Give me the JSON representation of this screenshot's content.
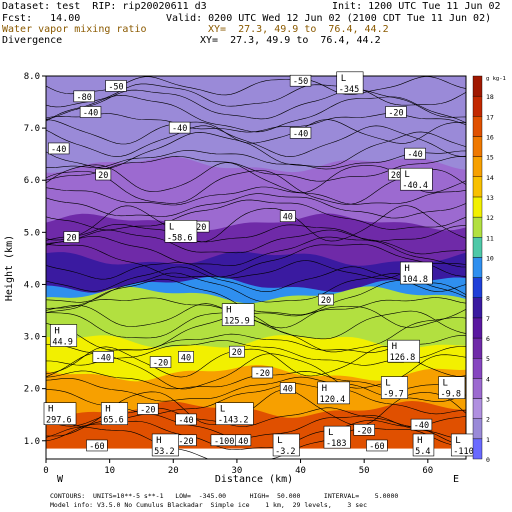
{
  "header": {
    "dataset": "Dataset: test  RIP: rip20020611 d3",
    "init": "Init: 1200 UTC Tue 11 Jun 02",
    "fcst": "Fcst:   14.00",
    "valid": "Valid: 0200 UTC Wed 12 Jun 02 (2100 CDT Tue 11 Jun 02)",
    "field1": "Water vapor mixing ratio",
    "field1_xy": "XY=  27.3, 49.9 to  76.4, 44.2",
    "field2": "Divergence",
    "field2_xy": "XY=  27.3, 49.9 to  76.4, 44.2"
  },
  "footer": {
    "line1": "CONTOURS:  UNITS=10**-5 s**-1   LOW=  -345.00      HIGH=  50.000      INTERVAL=    5.0000",
    "line2": "Model info: V3.5.0 No Cumulus Blackadar  Simple ice    1 km,  29 levels,    3 sec"
  },
  "chart_data": {
    "type": "heatmap",
    "xlabel": "Distance (km)",
    "ylabel": "Height (km)",
    "x_ticks": [
      "0",
      "10",
      "20",
      "30",
      "40",
      "50",
      "60"
    ],
    "y_ticks": [
      "1.0",
      "2.0",
      "3.0",
      "4.0",
      "5.0",
      "6.0",
      "7.0",
      "8.0"
    ],
    "xlim": [
      0,
      66
    ],
    "ylim": [
      0.65,
      8.0
    ],
    "x_end_labels": {
      "left": "W",
      "right": "E"
    },
    "colorbar": {
      "unit_label": "g kg-1",
      "levels": [
        "0",
        "1",
        "2",
        "3",
        "4",
        "5",
        "6",
        "7",
        "8",
        "9",
        "10",
        "11",
        "12",
        "13",
        "14",
        "15",
        "16",
        "17",
        "18"
      ],
      "colors": [
        "#6a6aff",
        "#9a8ad8",
        "#b090e0",
        "#9c6ad0",
        "#8646c0",
        "#6f2aa8",
        "#5a18a0",
        "#3a1aa0",
        "#1f3fd8",
        "#2f8fef",
        "#4ec8a8",
        "#b2e040",
        "#f2f000",
        "#f8c000",
        "#f7a000",
        "#ef7800",
        "#e05000",
        "#c22800",
        "#a01800"
      ]
    },
    "color_bands": [
      {
        "level": 1,
        "top": 8.0
      },
      {
        "level": 3,
        "top": 6.3
      },
      {
        "level": 5,
        "top": 5.2
      },
      {
        "level": 7,
        "top": 4.5
      },
      {
        "level": 9,
        "top": 4.0
      },
      {
        "level": 11,
        "top": 3.8
      },
      {
        "level": 12,
        "top": 2.9
      },
      {
        "level": 14,
        "top": 2.3
      },
      {
        "level": 16,
        "top": 1.6
      }
    ],
    "contour_labels": [
      {
        "text": "-80",
        "x": 6,
        "y": 7.6
      },
      {
        "text": "-50",
        "x": 11,
        "y": 7.8
      },
      {
        "text": "-40",
        "x": 7,
        "y": 7.3
      },
      {
        "text": "-40",
        "x": 2,
        "y": 6.6
      },
      {
        "text": "20",
        "x": 9,
        "y": 6.1
      },
      {
        "text": "-40",
        "x": 21,
        "y": 7.0
      },
      {
        "text": "-50",
        "x": 40,
        "y": 7.9
      },
      {
        "text": "-40",
        "x": 40,
        "y": 6.9
      },
      {
        "text": "-20",
        "x": 55,
        "y": 7.3
      },
      {
        "text": "-40",
        "x": 58,
        "y": 6.5
      },
      {
        "text": "20",
        "x": 55,
        "y": 6.1
      },
      {
        "text": "20",
        "x": 4,
        "y": 4.9
      },
      {
        "text": "-20",
        "x": 24,
        "y": 5.1
      },
      {
        "text": "40",
        "x": 38,
        "y": 5.3
      },
      {
        "text": "-40",
        "x": 9,
        "y": 2.6
      },
      {
        "text": "-20",
        "x": 18,
        "y": 2.5
      },
      {
        "text": "40",
        "x": 22,
        "y": 2.6
      },
      {
        "text": "20",
        "x": 30,
        "y": 2.7
      },
      {
        "text": "20",
        "x": 44,
        "y": 3.7
      },
      {
        "text": "20",
        "x": 55,
        "y": 2.6
      },
      {
        "text": "-20",
        "x": 34,
        "y": 2.3
      },
      {
        "text": "40",
        "x": 38,
        "y": 2.0
      },
      {
        "text": "-20",
        "x": 16,
        "y": 1.6
      },
      {
        "text": "-40",
        "x": 22,
        "y": 1.4
      },
      {
        "text": "-60",
        "x": 8,
        "y": 0.9
      },
      {
        "text": "-20",
        "x": 22,
        "y": 1.0
      },
      {
        "text": "-100",
        "x": 28,
        "y": 1.0
      },
      {
        "text": "40",
        "x": 31,
        "y": 1.0
      },
      {
        "text": "-20",
        "x": 50,
        "y": 1.2
      },
      {
        "text": "-60",
        "x": 52,
        "y": 0.9
      },
      {
        "text": "-40",
        "x": 59,
        "y": 1.3
      },
      {
        "text": "-20",
        "x": 55,
        "y": 2.0
      }
    ],
    "extrema": [
      {
        "kind": "L",
        "value": "-345",
        "x": 46,
        "y": 7.85
      },
      {
        "kind": "L",
        "value": "-40.4",
        "x": 56,
        "y": 6.0
      },
      {
        "kind": "L",
        "value": "-58.6",
        "x": 19,
        "y": 5.0
      },
      {
        "kind": "H",
        "value": "104.8",
        "x": 56,
        "y": 4.2
      },
      {
        "kind": "H",
        "value": "125.9",
        "x": 28,
        "y": 3.4
      },
      {
        "kind": "H",
        "value": "44.9",
        "x": 1,
        "y": 3.0
      },
      {
        "kind": "H",
        "value": "126.8",
        "x": 54,
        "y": 2.7
      },
      {
        "kind": "H",
        "value": "297.6",
        "x": 0,
        "y": 1.5
      },
      {
        "kind": "H",
        "value": "65.6",
        "x": 9,
        "y": 1.5
      },
      {
        "kind": "L",
        "value": "-143.2",
        "x": 27,
        "y": 1.5
      },
      {
        "kind": "H",
        "value": "120.4",
        "x": 43,
        "y": 1.9
      },
      {
        "kind": "L",
        "value": "-9.7",
        "x": 53,
        "y": 2.0
      },
      {
        "kind": "L",
        "value": "-9.8",
        "x": 62,
        "y": 2.0
      },
      {
        "kind": "L",
        "value": "-183",
        "x": 44,
        "y": 1.05
      },
      {
        "kind": "H",
        "value": "53.2",
        "x": 17,
        "y": 0.9
      },
      {
        "kind": "L",
        "value": "-3.2",
        "x": 36,
        "y": 0.9
      },
      {
        "kind": "H",
        "value": "5.4",
        "x": 58,
        "y": 0.9
      },
      {
        "kind": "L",
        "value": "-110",
        "x": 64,
        "y": 0.9
      }
    ]
  }
}
